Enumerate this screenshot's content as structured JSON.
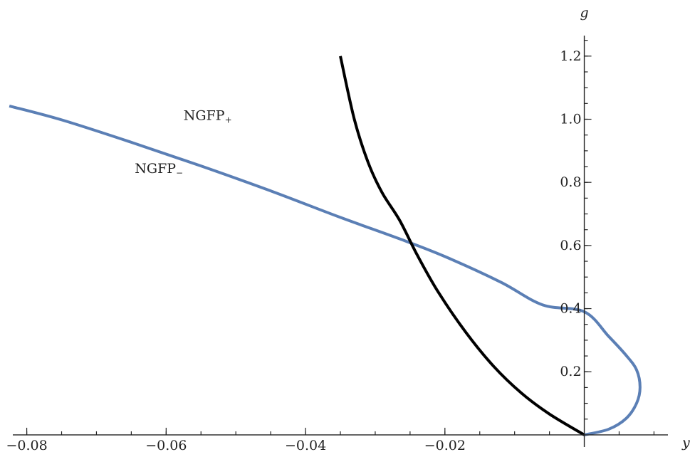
{
  "chart_data": {
    "type": "line",
    "xlabel": "y",
    "ylabel": "g",
    "xlim": [
      -0.082,
      0.012
    ],
    "ylim": [
      -0.025,
      1.265
    ],
    "x_ticks": [
      {
        "value": -0.08,
        "label": "−0.08"
      },
      {
        "value": -0.06,
        "label": "−0.06"
      },
      {
        "value": -0.04,
        "label": "−0.04"
      },
      {
        "value": -0.02,
        "label": "−0.02"
      }
    ],
    "x_minor_step": 0.005,
    "y_ticks": [
      {
        "value": 0.2,
        "label": "0.2"
      },
      {
        "value": 0.4,
        "label": "0.4"
      },
      {
        "value": 0.6,
        "label": "0.6"
      },
      {
        "value": 0.8,
        "label": "0.8"
      },
      {
        "value": 1.0,
        "label": "1.0"
      },
      {
        "value": 1.2,
        "label": "1.2"
      }
    ],
    "y_minor_step": 0.05,
    "annotations": [
      {
        "text": "NGFP",
        "sub": "+",
        "x": -0.0575,
        "y": 0.998
      },
      {
        "text": "NGFP",
        "sub": "−",
        "x": -0.0645,
        "y": 0.83
      }
    ],
    "series": [
      {
        "color": "#5b7fb5",
        "points": [
          [
            -0.0825,
            1.042
          ],
          [
            -0.075,
            0.998
          ],
          [
            -0.065,
            0.927
          ],
          [
            -0.055,
            0.852
          ],
          [
            -0.045,
            0.773
          ],
          [
            -0.035,
            0.689
          ],
          [
            -0.0265,
            0.621
          ],
          [
            -0.02,
            0.565
          ],
          [
            -0.012,
            0.484
          ],
          [
            -0.006,
            0.412
          ],
          [
            0.0,
            0.39
          ],
          [
            0.0035,
            0.312
          ],
          [
            0.006,
            0.252
          ],
          [
            0.0075,
            0.206
          ],
          [
            0.008,
            0.151
          ],
          [
            0.0075,
            0.1
          ],
          [
            0.006,
            0.052
          ],
          [
            0.0035,
            0.018
          ],
          [
            0.0,
            0.0
          ]
        ]
      },
      {
        "color": "#000000",
        "points": [
          [
            -0.035,
            1.2
          ],
          [
            -0.033,
            1.0
          ],
          [
            -0.031,
            0.862
          ],
          [
            -0.029,
            0.767
          ],
          [
            -0.0265,
            0.68
          ],
          [
            -0.024,
            0.571
          ],
          [
            -0.021,
            0.454
          ],
          [
            -0.017,
            0.325
          ],
          [
            -0.013,
            0.217
          ],
          [
            -0.009,
            0.132
          ],
          [
            -0.005,
            0.066
          ],
          [
            0.0,
            0.0
          ]
        ]
      }
    ]
  }
}
